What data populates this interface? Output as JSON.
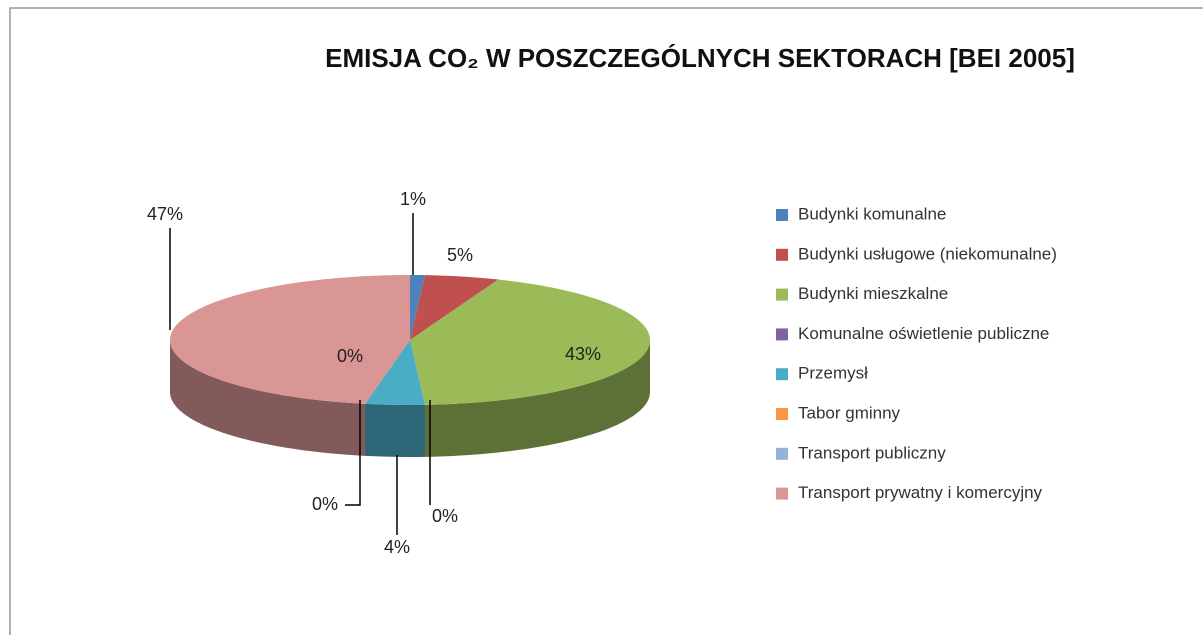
{
  "chart_data": {
    "type": "pie3d",
    "title": "EMISJA CO₂ W POSZCZEGÓLNYCH SEKTORACH [BEI 2005]",
    "categories": [
      "Budynki komunalne",
      "Budynki usługowe (niekomunalne)",
      "Budynki mieszkalne",
      "Komunalne oświetlenie publiczne",
      "Przemysł",
      "Tabor gminny",
      "Transport publiczny",
      "Transport prywatny i komercyjny"
    ],
    "values": [
      1,
      5,
      43,
      0,
      4,
      0,
      0,
      47
    ],
    "value_labels": [
      "1%",
      "5%",
      "43%",
      "0%",
      "4%",
      "0%",
      "0%",
      "47%"
    ],
    "colors": [
      "#4f81bd",
      "#c0504d",
      "#9bbb59",
      "#8064a2",
      "#4bacc6",
      "#f79646",
      "#95b3d7",
      "#d99694"
    ],
    "legend": "right"
  }
}
